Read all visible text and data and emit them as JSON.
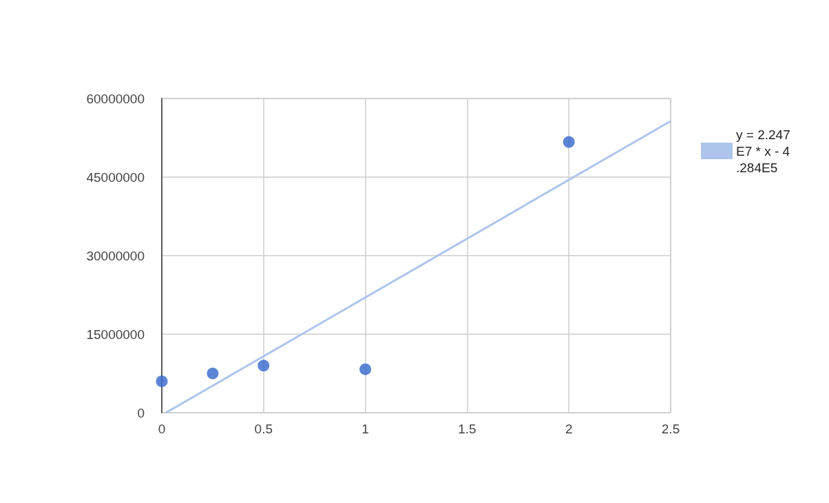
{
  "chart_data": {
    "type": "scatter",
    "xlim": [
      0,
      2.5
    ],
    "xticks": [
      0,
      0.5,
      1,
      1.5,
      2,
      2.5
    ],
    "ylim": [
      0,
      60000000
    ],
    "yticks": [
      0,
      15000000,
      30000000,
      45000000,
      60000000
    ],
    "grid": true,
    "legend": "right",
    "series": [
      {
        "marker": "circle",
        "color": "#3366cc",
        "x": [
          0,
          0.25,
          0.5,
          1,
          2
        ],
        "values": [
          6000000,
          7500000,
          9000000,
          8300000,
          51700000
        ]
      },
      {
        "type": "line",
        "marker": "none",
        "name": "y = 2.247E7 * x - 4.284E5",
        "color": "#adc5ec",
        "x": [
          0.02,
          2.5
        ],
        "values": [
          0,
          55700000
        ]
      }
    ]
  }
}
